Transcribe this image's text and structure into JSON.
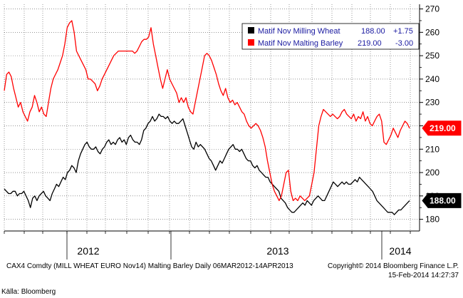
{
  "chart_data": {
    "type": "line",
    "ylim": [
      175,
      272
    ],
    "y_ticks": [
      180,
      190,
      200,
      210,
      220,
      230,
      240,
      250,
      260,
      270
    ],
    "grid": true,
    "legend_position": "top-right",
    "x_labels": [
      "2012",
      "2013",
      "2014"
    ],
    "series": [
      {
        "name": "Matif Nov Milling Wheat",
        "last": "188.00",
        "change": "+1.75",
        "tag": "188.00",
        "color": "#000000",
        "values": [
          193,
          192,
          191,
          191,
          192,
          192,
          190,
          191,
          191,
          192,
          190,
          188,
          185,
          189,
          190,
          188,
          190,
          191,
          192,
          190,
          189,
          188,
          191,
          193,
          195,
          194,
          196,
          198,
          197,
          200,
          201,
          203,
          202,
          200,
          205,
          208,
          210,
          212,
          213,
          211,
          210,
          210,
          211,
          209,
          208,
          210,
          211,
          213,
          214,
          212,
          213,
          212,
          214,
          215,
          213,
          214,
          212,
          215,
          216,
          214,
          213,
          213,
          212,
          214,
          218,
          219,
          221,
          222,
          224,
          222,
          223,
          225,
          224,
          224,
          223,
          224,
          222,
          221,
          222,
          221,
          221,
          222,
          223,
          220,
          217,
          214,
          211,
          210,
          213,
          211,
          212,
          211,
          210,
          208,
          206,
          205,
          203,
          201,
          203,
          205,
          204,
          206,
          208,
          210,
          211,
          212,
          210,
          210,
          209,
          210,
          208,
          206,
          205,
          205,
          203,
          202,
          203,
          201,
          200,
          199,
          198,
          198,
          196,
          195,
          194,
          193,
          192,
          189,
          188,
          187,
          185,
          184,
          183,
          183,
          184,
          185,
          186,
          187,
          186,
          188,
          187,
          186,
          188,
          189,
          190,
          189,
          188,
          188,
          190,
          192,
          194,
          196,
          195,
          194,
          195,
          196,
          195,
          196,
          195,
          195,
          196,
          197,
          196,
          198,
          197,
          196,
          195,
          194,
          193,
          192,
          190,
          188,
          187,
          186,
          185,
          184,
          183,
          183,
          183,
          182,
          183,
          184,
          184,
          185,
          186,
          187,
          188
        ]
      },
      {
        "name": "Matif Nov Malting Barley",
        "last": "219.00",
        "change": "-3.00",
        "tag": "219.00",
        "color": "#ff0000",
        "values": [
          235,
          242,
          243,
          241,
          236,
          232,
          228,
          230,
          226,
          224,
          222,
          226,
          228,
          233,
          230,
          226,
          228,
          225,
          224,
          230,
          236,
          240,
          242,
          244,
          247,
          250,
          255,
          262,
          264,
          265,
          260,
          252,
          250,
          248,
          246,
          244,
          240,
          240,
          239,
          238,
          235,
          237,
          240,
          242,
          244,
          246,
          248,
          250,
          251,
          252,
          252,
          252,
          252,
          252,
          252,
          252,
          251,
          252,
          254,
          256,
          257,
          257,
          258,
          262,
          255,
          250,
          245,
          240,
          236,
          240,
          244,
          240,
          238,
          236,
          234,
          230,
          232,
          230,
          232,
          228,
          226,
          225,
          230,
          235,
          240,
          245,
          250,
          251,
          250,
          248,
          245,
          242,
          238,
          235,
          233,
          236,
          232,
          230,
          231,
          229,
          230,
          228,
          226,
          225,
          222,
          220,
          219,
          220,
          221,
          220,
          218,
          215,
          211,
          205,
          200,
          195,
          192,
          190,
          188,
          190,
          195,
          200,
          201,
          192,
          188,
          189,
          188,
          190,
          189,
          188,
          189,
          190,
          195,
          200,
          210,
          220,
          224,
          227,
          226,
          225,
          224,
          225,
          224,
          223,
          224,
          226,
          227,
          225,
          224,
          223,
          225,
          222,
          224,
          223,
          226,
          222,
          224,
          221,
          220,
          222,
          224,
          225,
          222,
          213,
          212,
          214,
          216,
          219,
          217,
          215,
          218,
          220,
          222,
          221,
          219
        ]
      }
    ],
    "footer_left": "CAX4 Comdty  (MILL WHEAT EURO   Nov14) Malting Barley  Daily 06MAR2012-14APR2013",
    "footer_right_1": "Copyright© 2014 Bloomberg Finance L.P.",
    "footer_right_2": "15-Feb-2014 14:27:37",
    "source": "Källa: Bloomberg"
  }
}
